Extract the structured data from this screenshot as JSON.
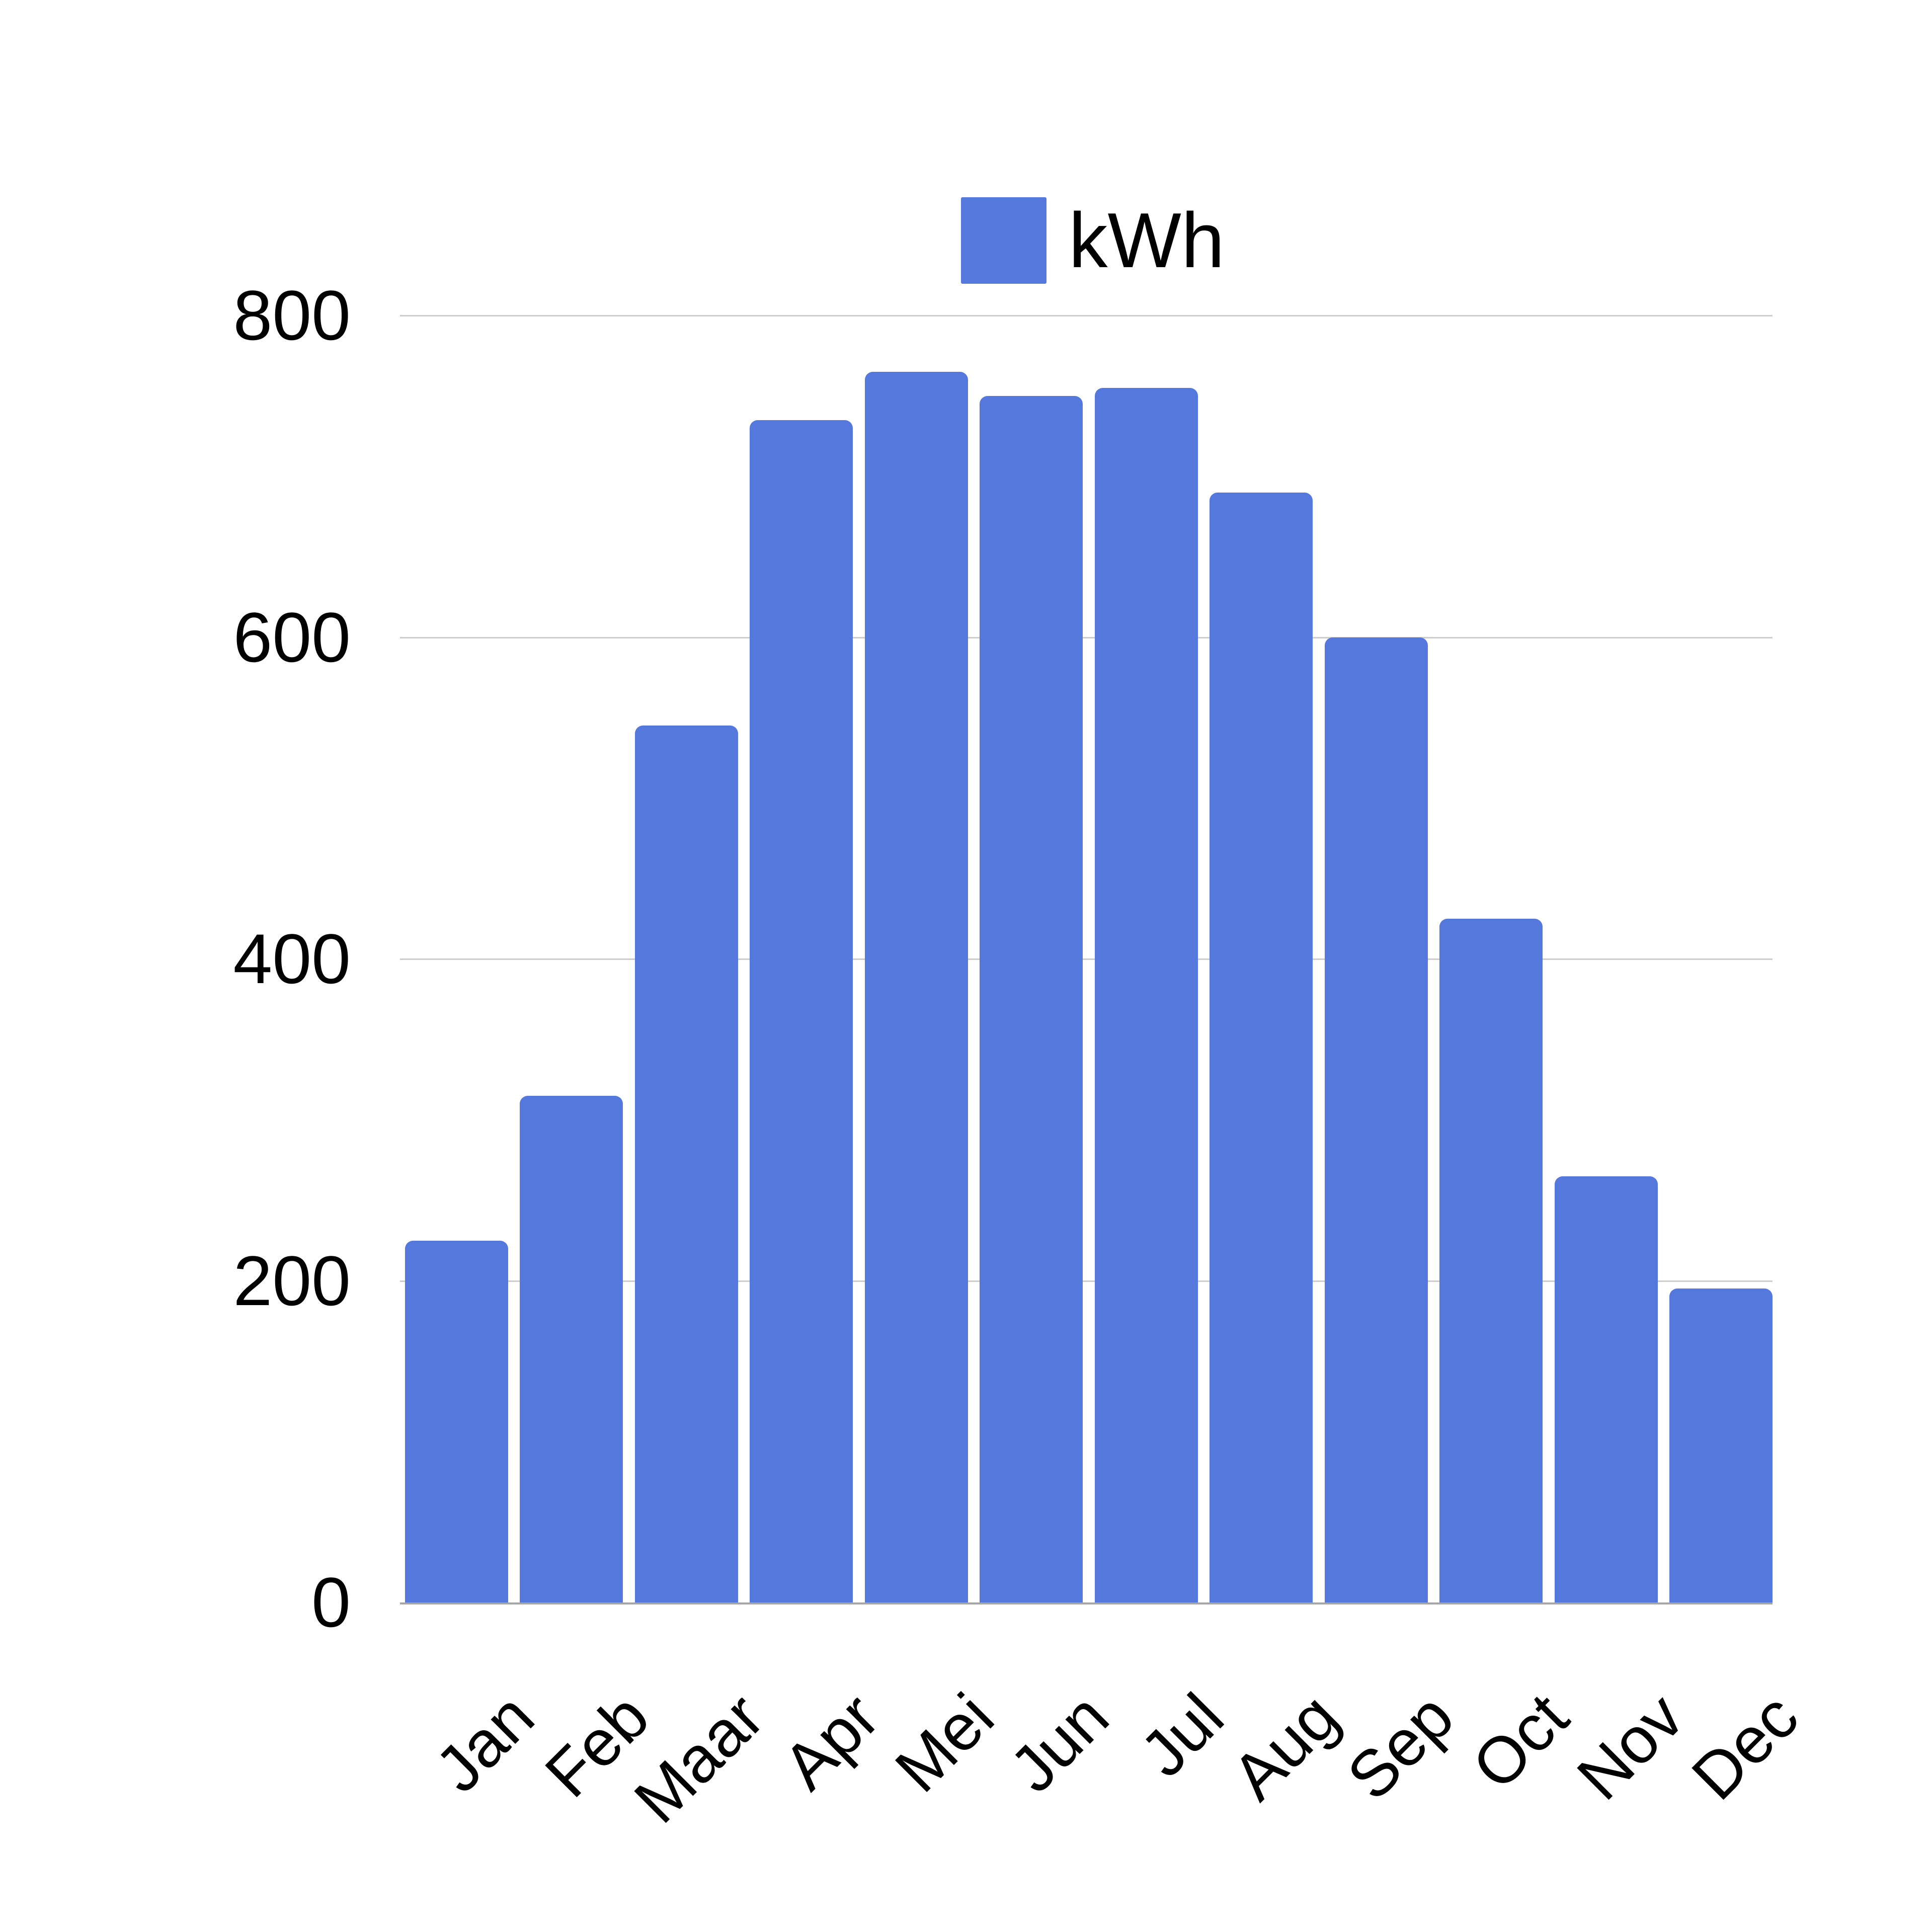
{
  "legend": {
    "label": "kWh"
  },
  "colors": {
    "bar": "#5478DC",
    "gridline": "#CDCDCD",
    "baseline": "#A6A6A6",
    "text": "#000000",
    "background": "#FFFFFF"
  },
  "chart_data": {
    "type": "bar",
    "title": "",
    "series_name": "kWh",
    "categories": [
      "Jan",
      "Feb",
      "Maar",
      "Apr",
      "Mei",
      "Jun",
      "Jul",
      "Aug",
      "Sep",
      "Oct",
      "Nov",
      "Dec"
    ],
    "values": [
      225,
      315,
      545,
      735,
      765,
      750,
      755,
      690,
      600,
      425,
      265,
      195
    ],
    "xlabel": "",
    "ylabel": "",
    "ylim": [
      0,
      800
    ],
    "yticks": [
      0,
      200,
      400,
      600,
      800
    ],
    "grid": true,
    "legend_position": "top-center",
    "x_tick_rotation": -45
  }
}
